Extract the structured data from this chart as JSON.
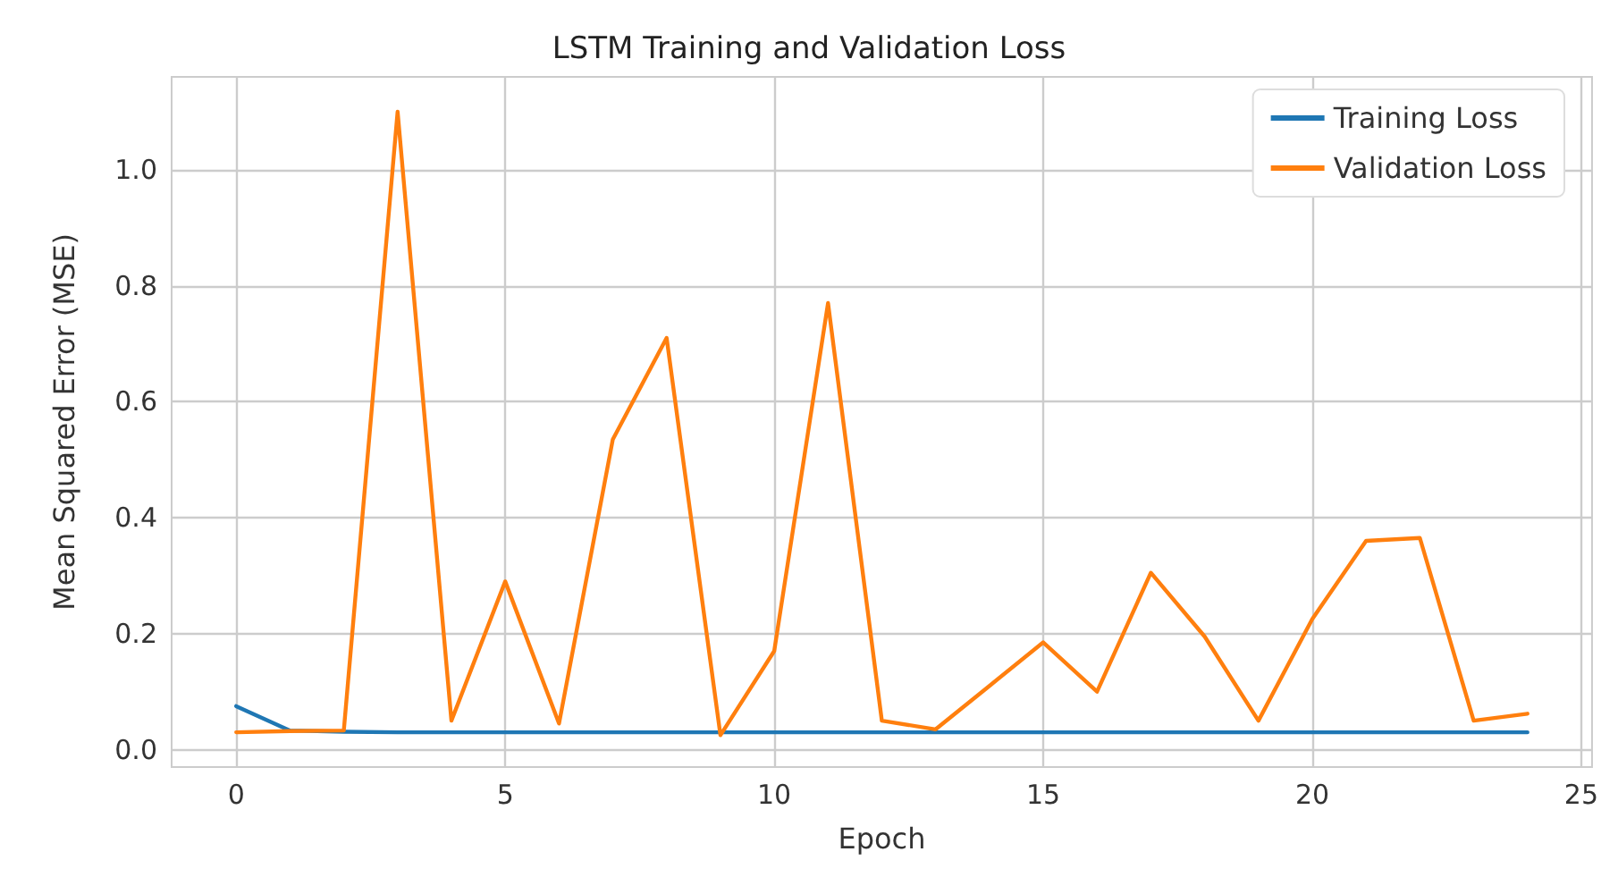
{
  "chart_data": {
    "type": "line",
    "title": "LSTM Training and Validation Loss",
    "xlabel": "Epoch",
    "ylabel": "Mean Squared Error (MSE)",
    "x": [
      0,
      1,
      2,
      3,
      4,
      5,
      6,
      7,
      8,
      9,
      10,
      11,
      12,
      13,
      14,
      15,
      16,
      17,
      18,
      19,
      20,
      21,
      22,
      23,
      24
    ],
    "series": [
      {
        "name": "Training Loss",
        "color": "#1f77b4",
        "values": [
          0.075,
          0.033,
          0.031,
          0.03,
          0.03,
          0.03,
          0.03,
          0.03,
          0.03,
          0.03,
          0.03,
          0.03,
          0.03,
          0.03,
          0.03,
          0.03,
          0.03,
          0.03,
          0.03,
          0.03,
          0.03,
          0.03,
          0.03,
          0.03,
          0.03
        ]
      },
      {
        "name": "Validation Loss",
        "color": "#ff7f0e",
        "values": [
          0.03,
          0.032,
          0.033,
          1.1,
          0.05,
          0.29,
          0.045,
          0.535,
          0.71,
          0.025,
          0.17,
          0.77,
          0.05,
          0.035,
          0.11,
          0.185,
          0.1,
          0.305,
          0.195,
          0.05,
          0.225,
          0.36,
          0.365,
          0.05,
          0.062
        ]
      }
    ],
    "xlim": [
      -1.2,
      25.2
    ],
    "xticks": [
      0,
      5,
      10,
      15,
      20,
      25
    ],
    "ylim": [
      -0.03,
      1.16
    ],
    "yticks": [
      {
        "value": 0,
        "label": "0.0"
      },
      {
        "value": 0.2,
        "label": "0.2"
      },
      {
        "value": 0.4,
        "label": "0.4"
      },
      {
        "value": 0.6,
        "label": "0.6"
      },
      {
        "value": 0.8,
        "label": "0.8"
      },
      {
        "value": 1,
        "label": "1.0"
      }
    ],
    "grid": true,
    "legend": "top right",
    "marker": "none",
    "line_style": "solid"
  }
}
